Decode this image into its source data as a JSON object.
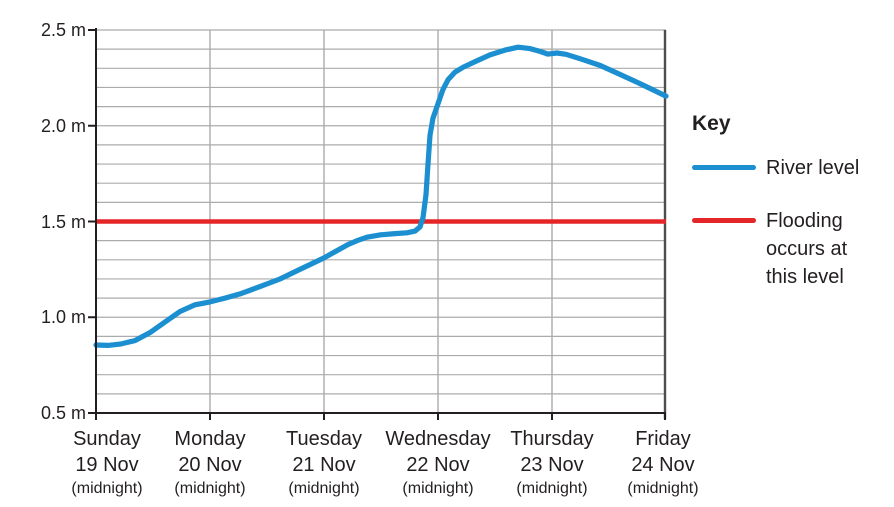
{
  "figure": {
    "background": "#ffffff",
    "key": {
      "title": "Key",
      "entries": [
        {
          "label": "River level",
          "color": "#1b8fd0"
        },
        {
          "label": "Flooding\noccurs at\nthis level",
          "color": "#e52629"
        }
      ]
    }
  },
  "colors": {
    "gridline": "#ababab",
    "axis": "#231f20",
    "right_border": "#4d4d4d",
    "text": "#231f20"
  },
  "chart_data": {
    "type": "line",
    "title": "",
    "xlabel": "",
    "ylabel": "",
    "grid": true,
    "legend_position": "right",
    "ylim": [
      0.5,
      2.5
    ],
    "y_major_ticks": [
      2.5,
      2.0,
      1.5,
      1.0,
      0.5
    ],
    "y_tick_labels": [
      "2.5 m",
      "2.0 m",
      "1.5 m",
      "1.0 m",
      "0.5 m"
    ],
    "y_minor_gridline_step": 0.1,
    "x_ticks": [
      {
        "day": "Sunday",
        "date": "19 Nov",
        "note": "(midnight)"
      },
      {
        "day": "Monday",
        "date": "20 Nov",
        "note": "(midnight)"
      },
      {
        "day": "Tuesday",
        "date": "21 Nov",
        "note": "(midnight)"
      },
      {
        "day": "Wednesday",
        "date": "22 Nov",
        "note": "(midnight)"
      },
      {
        "day": "Thursday",
        "date": "23 Nov",
        "note": "(midnight)"
      },
      {
        "day": "Friday",
        "date": "24 Nov",
        "note": "(midnight)"
      }
    ],
    "x_units": "days from Sunday 19 Nov (midnight)",
    "y_units": "m",
    "series": [
      {
        "name": "River level",
        "color": "#1b8fd0",
        "points": [
          [
            0,
            0.855
          ],
          [
            0.105,
            0.853
          ],
          [
            0.211,
            0.86
          ],
          [
            0.342,
            0.878
          ],
          [
            0.474,
            0.92
          ],
          [
            0.605,
            0.975
          ],
          [
            0.737,
            1.03
          ],
          [
            0.868,
            1.065
          ],
          [
            1,
            1.08
          ],
          [
            1.132,
            1.1
          ],
          [
            1.263,
            1.122
          ],
          [
            1.439,
            1.16
          ],
          [
            1.614,
            1.2
          ],
          [
            1.789,
            1.25
          ],
          [
            1.895,
            1.28
          ],
          [
            2,
            1.31
          ],
          [
            2.105,
            1.345
          ],
          [
            2.211,
            1.38
          ],
          [
            2.289,
            1.4
          ],
          [
            2.377,
            1.418
          ],
          [
            2.491,
            1.43
          ],
          [
            2.623,
            1.437
          ],
          [
            2.728,
            1.441
          ],
          [
            2.798,
            1.45
          ],
          [
            2.842,
            1.472
          ],
          [
            2.868,
            1.52
          ],
          [
            2.895,
            1.64
          ],
          [
            2.912,
            1.8
          ],
          [
            2.93,
            1.95
          ],
          [
            2.956,
            2.04
          ],
          [
            2.991,
            2.1
          ],
          [
            3.044,
            2.19
          ],
          [
            3.088,
            2.24
          ],
          [
            3.149,
            2.28
          ],
          [
            3.219,
            2.305
          ],
          [
            3.325,
            2.335
          ],
          [
            3.456,
            2.37
          ],
          [
            3.588,
            2.395
          ],
          [
            3.702,
            2.41
          ],
          [
            3.807,
            2.403
          ],
          [
            3.895,
            2.388
          ],
          [
            3.965,
            2.374
          ],
          [
            4.044,
            2.38
          ],
          [
            4.123,
            2.373
          ],
          [
            4.246,
            2.35
          ],
          [
            4.421,
            2.315
          ],
          [
            4.596,
            2.268
          ],
          [
            4.772,
            2.22
          ],
          [
            4.877,
            2.19
          ],
          [
            5,
            2.155
          ]
        ]
      }
    ],
    "reference_line": {
      "name": "Flooding occurs at this level",
      "value": 1.5,
      "color": "#e52629"
    }
  }
}
